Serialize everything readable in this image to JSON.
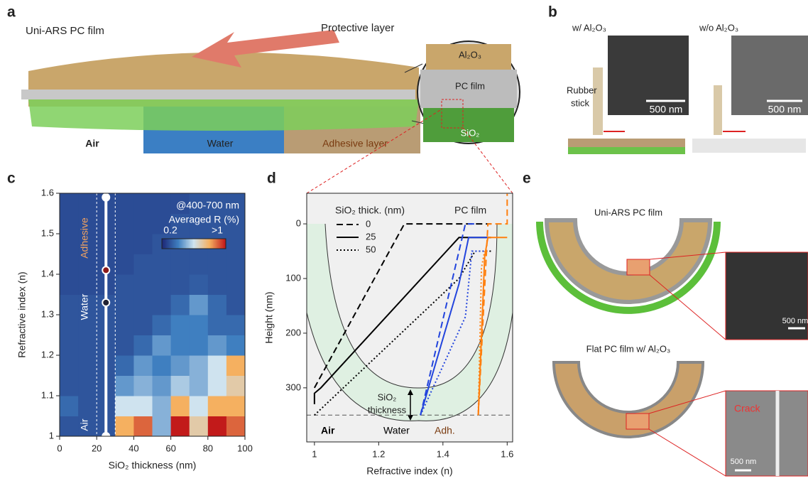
{
  "panel_labels": [
    "a",
    "b",
    "c",
    "d",
    "e"
  ],
  "panel_a": {
    "title": "Uni-ARS PC film",
    "arrow_label": "Protective layer",
    "media": [
      "Air",
      "Water",
      "Adhesive layer"
    ],
    "layers": [
      "Al₂O₃",
      "PC film",
      "SiO₂"
    ]
  },
  "panel_b": {
    "labels": [
      "w/ Al₂O₃",
      "w/o Al₂O₃"
    ],
    "probe": [
      "Rubber",
      "stick"
    ],
    "scale_bars": [
      "500 nm",
      "500 nm"
    ]
  },
  "panel_e": {
    "top_title": "Uni-ARS PC film",
    "bottom_title": "Flat PC film w/ Al₂O₃",
    "crack": "Crack",
    "scale_bars": [
      "500 nm",
      "500 nm"
    ]
  },
  "chart_data": [
    {
      "type": "heatmap",
      "xlabel": "SiO₂ thickness (nm)",
      "ylabel": "Refractive index (n)",
      "annotation": "@400-700 nm",
      "x_bins": [
        0,
        10,
        20,
        30,
        40,
        50,
        60,
        70,
        80,
        90,
        100
      ],
      "y_bins": [
        1,
        1.05,
        1.1,
        1.15,
        1.2,
        1.25,
        1.3,
        1.35,
        1.4,
        1.45,
        1.5,
        1.55,
        1.6
      ],
      "z": [
        [
          0.3,
          0.3,
          0.3,
          0.8,
          0.9,
          0.5,
          1,
          0.7,
          1,
          0.9
        ],
        [
          0.35,
          0.3,
          0.3,
          0.6,
          0.6,
          0.5,
          0.8,
          0.6,
          0.8,
          0.8
        ],
        [
          0.3,
          0.3,
          0.3,
          0.45,
          0.5,
          0.45,
          0.55,
          0.5,
          0.6,
          0.7
        ],
        [
          0.3,
          0.3,
          0.3,
          0.35,
          0.45,
          0.4,
          0.45,
          0.5,
          0.6,
          0.8
        ],
        [
          0.3,
          0.3,
          0.3,
          0.3,
          0.35,
          0.45,
          0.4,
          0.4,
          0.45,
          0.4
        ],
        [
          0.3,
          0.3,
          0.3,
          0.3,
          0.3,
          0.35,
          0.4,
          0.4,
          0.35,
          0.35
        ],
        [
          0.3,
          0.3,
          0.3,
          0.3,
          0.3,
          0.3,
          0.35,
          0.45,
          0.35,
          0.3
        ],
        [
          0.28,
          0.28,
          0.28,
          0.3,
          0.3,
          0.3,
          0.3,
          0.32,
          0.3,
          0.3
        ],
        [
          0.28,
          0.28,
          0.28,
          0.28,
          0.3,
          0.3,
          0.3,
          0.3,
          0.3,
          0.3
        ],
        [
          0.28,
          0.28,
          0.28,
          0.28,
          0.28,
          0.3,
          0.3,
          0.3,
          0.3,
          0.3
        ],
        [
          0.28,
          0.28,
          0.28,
          0.28,
          0.28,
          0.28,
          0.3,
          0.3,
          0.3,
          0.3
        ],
        [
          0.28,
          0.28,
          0.28,
          0.28,
          0.28,
          0.28,
          0.28,
          0.3,
          0.3,
          0.3
        ]
      ],
      "xlim": [
        0,
        100
      ],
      "ylim": [
        1,
        1.6
      ],
      "xticks": [
        0,
        20,
        40,
        60,
        80,
        100
      ],
      "yticks": [
        1,
        1.1,
        1.2,
        1.3,
        1.4,
        1.5,
        1.6
      ],
      "colormap": [
        "#1e2a78",
        "#3f7fc0",
        "#cfe3ef",
        "#f5b060",
        "#c21a1a"
      ],
      "colorbar": {
        "title": "Averaged R (%)",
        "ticks": [
          0.2,
          {
            "value": 1,
            "label": ">1"
          }
        ]
      },
      "regions": [
        "Adhesive",
        "Water",
        "Air"
      ],
      "points": {
        "x": [
          25,
          25,
          25,
          25
        ],
        "y": [
          1,
          1.33,
          1.41,
          1.59
        ]
      },
      "vlines": [
        20,
        30
      ]
    },
    {
      "type": "line",
      "xlabel": "Refractive index (n)",
      "ylabel": "Height (nm)",
      "xlim": [
        0.976,
        1.617
      ],
      "ylim": [
        399,
        -56
      ],
      "xticks": [
        1,
        1.2,
        1.4,
        1.6
      ],
      "yticks": [
        0,
        100,
        200,
        300
      ],
      "legend": {
        "title": "SiO₂ thick. (nm)",
        "entries": [
          {
            "label": "0",
            "dash": "dashed"
          },
          {
            "label": "25",
            "dash": "solid"
          },
          {
            "label": "50",
            "dash": "dotted"
          }
        ]
      },
      "series": [
        {
          "color": "#000000",
          "dash": "dashed",
          "x": [
            1,
            1.28,
            1.55
          ],
          "y": [
            300,
            0,
            0
          ]
        },
        {
          "color": "#000000",
          "dash": "solid",
          "x": [
            1,
            1,
            1.02,
            1.45,
            1.55
          ],
          "y": [
            330,
            310,
            300,
            25,
            25
          ]
        },
        {
          "color": "#000000",
          "dash": "dotted",
          "x": [
            1,
            1.45,
            1.5,
            1.55
          ],
          "y": [
            350,
            100,
            50,
            50
          ]
        },
        {
          "color": "#2244dd",
          "dash": "dashed",
          "x": [
            1.33,
            1.47,
            1.5
          ],
          "y": [
            350,
            0,
            0
          ]
        },
        {
          "color": "#2244dd",
          "dash": "solid",
          "x": [
            1.33,
            1.45,
            1.48,
            1.54
          ],
          "y": [
            350,
            110,
            25,
            25
          ]
        },
        {
          "color": "#2244dd",
          "dash": "dotted",
          "x": [
            1.33,
            1.47,
            1.49,
            1.54
          ],
          "y": [
            350,
            170,
            50,
            50
          ]
        },
        {
          "color": "#ff7f0e",
          "dash": "dashed",
          "x": [
            1.51,
            1.54,
            1.6,
            1.6
          ],
          "y": [
            350,
            0,
            0,
            -55
          ]
        },
        {
          "color": "#ff7f0e",
          "dash": "solid",
          "x": [
            1.51,
            1.53,
            1.54,
            1.6
          ],
          "y": [
            350,
            60,
            25,
            25
          ]
        },
        {
          "color": "#ff7f0e",
          "dash": "dotted",
          "x": [
            1.51,
            1.52,
            1.53
          ],
          "y": [
            350,
            80,
            50
          ]
        }
      ],
      "hlines": [
        350
      ],
      "annotations": {
        "top": "PC film",
        "media": [
          "Air",
          "Water",
          "Adh."
        ],
        "thickness": [
          "SiO₂",
          "thickness"
        ]
      }
    }
  ]
}
